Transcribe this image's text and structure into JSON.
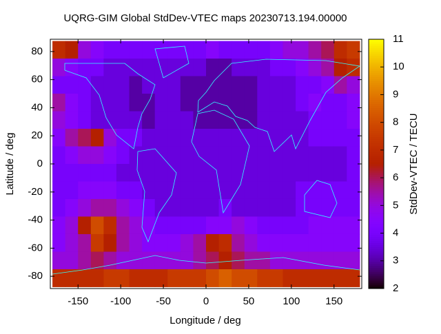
{
  "chart_data": {
    "type": "heatmap",
    "title": "UQRG-GIM Global StdDev-VTEC maps 20230713.194.00000",
    "x_label": "Longitude / deg",
    "y_label": "Latitude / deg",
    "colorbar_label": "StdDev-VTEC / TECU",
    "x_bins": [
      -180,
      -165,
      -150,
      -135,
      -120,
      -105,
      -90,
      -75,
      -60,
      -45,
      -30,
      -15,
      0,
      15,
      30,
      45,
      60,
      75,
      90,
      105,
      120,
      135,
      150,
      165,
      180
    ],
    "y_bins": [
      87.5,
      75,
      62.5,
      50,
      37.5,
      25,
      12.5,
      0,
      -12.5,
      -25,
      -37.5,
      -50,
      -62.5,
      -75,
      -87.5
    ],
    "values": [
      [
        7,
        6.5,
        5,
        4.5,
        4,
        4,
        4,
        4,
        4,
        4,
        4,
        4,
        4.5,
        4,
        4,
        4,
        4,
        4.5,
        5,
        5,
        5.5,
        6,
        7,
        7.5
      ],
      [
        5,
        4.5,
        4,
        4,
        3.5,
        3.5,
        3.5,
        3.5,
        3.5,
        3.5,
        3.5,
        3.5,
        3,
        3,
        3.5,
        3.5,
        3.5,
        4,
        4,
        4.5,
        5,
        5.5,
        6.5,
        7
      ],
      [
        4,
        4,
        4,
        3.5,
        3.5,
        3.5,
        3,
        3.5,
        3.5,
        3.5,
        3,
        3,
        3,
        3,
        3,
        3,
        3.5,
        3.5,
        3.5,
        4,
        4,
        4.5,
        5.5,
        5
      ],
      [
        5.5,
        4.5,
        4,
        3.5,
        3.5,
        3.5,
        3,
        3,
        3.5,
        3.5,
        3,
        3,
        3,
        3,
        3,
        3,
        3.5,
        3.5,
        3.5,
        4,
        4.5,
        4,
        4,
        4.5
      ],
      [
        5,
        4.5,
        4,
        3.5,
        3.5,
        3.5,
        3.5,
        3,
        3.5,
        3.5,
        3.5,
        3,
        3,
        3,
        3,
        3,
        3.5,
        3.5,
        3.5,
        3.5,
        4,
        4,
        4,
        4.5
      ],
      [
        4.5,
        5.5,
        6,
        6.5,
        5,
        4,
        4,
        3.5,
        3.5,
        3.5,
        3.5,
        3.5,
        3.5,
        3.5,
        3.5,
        3.5,
        3.5,
        3.5,
        3.5,
        3.5,
        4,
        4,
        4,
        4
      ],
      [
        4,
        4.5,
        5,
        5,
        4.5,
        4,
        3.5,
        3.5,
        3.5,
        3.5,
        3.5,
        3.5,
        3.5,
        3.5,
        3.5,
        3.5,
        3.5,
        3.5,
        3.5,
        3.5,
        3.5,
        3.5,
        3.5,
        4
      ],
      [
        4,
        4,
        4,
        4,
        4,
        3.5,
        3.5,
        3.5,
        3.5,
        3.5,
        3.5,
        3.5,
        3.5,
        3.5,
        3.5,
        3.5,
        3.5,
        3.5,
        3.5,
        3.5,
        3.5,
        3.5,
        3.5,
        4
      ],
      [
        4,
        4,
        4.5,
        4.5,
        4.5,
        4,
        4,
        3.5,
        3.5,
        3.5,
        3.5,
        3.5,
        3.5,
        3.5,
        3.5,
        3.5,
        3.5,
        3.5,
        3.5,
        4,
        4,
        4,
        4,
        4
      ],
      [
        4,
        4.5,
        5,
        5.5,
        5.5,
        5,
        4.5,
        4,
        3.5,
        3.5,
        3.5,
        3.5,
        3.5,
        4,
        3.5,
        3.5,
        3.5,
        3.5,
        3.5,
        4,
        4,
        4,
        4,
        4
      ],
      [
        4.5,
        5,
        6.5,
        8,
        7,
        5.5,
        5,
        4.5,
        4,
        4,
        4,
        4,
        4.5,
        4.5,
        5,
        4.5,
        4,
        4,
        4,
        4,
        4.5,
        4.5,
        4.5,
        4.5
      ],
      [
        4.5,
        5,
        5.5,
        7.5,
        6.5,
        5.5,
        5,
        4.5,
        4.5,
        4.5,
        5,
        5.5,
        6.5,
        7,
        5.5,
        5,
        4.5,
        4.5,
        4.5,
        4.5,
        4.5,
        4.5,
        4.5,
        4.5
      ],
      [
        5,
        5,
        5.5,
        6,
        5.5,
        5,
        5,
        5,
        5,
        5,
        5,
        5.5,
        6,
        6.5,
        6,
        5.5,
        5.5,
        5,
        5,
        5,
        5,
        5,
        5,
        5
      ],
      [
        7,
        7,
        7,
        7,
        7.5,
        7.5,
        7,
        7,
        7,
        7.5,
        7.5,
        7.5,
        8,
        8.5,
        8,
        8,
        7.5,
        7.5,
        7,
        7,
        7,
        7,
        7,
        7
      ]
    ],
    "xlim": [
      -182.5,
      182.5
    ],
    "ylim": [
      -88.75,
      88.75
    ],
    "clim": [
      2,
      11
    ],
    "xticks": [
      -150,
      -100,
      -50,
      0,
      50,
      100,
      150
    ],
    "yticks": [
      -80,
      -60,
      -40,
      -20,
      0,
      20,
      40,
      60,
      80
    ],
    "cticks": [
      2,
      3,
      4,
      5,
      6,
      7,
      8,
      9,
      10,
      11
    ],
    "colormap": "gnuplot"
  }
}
